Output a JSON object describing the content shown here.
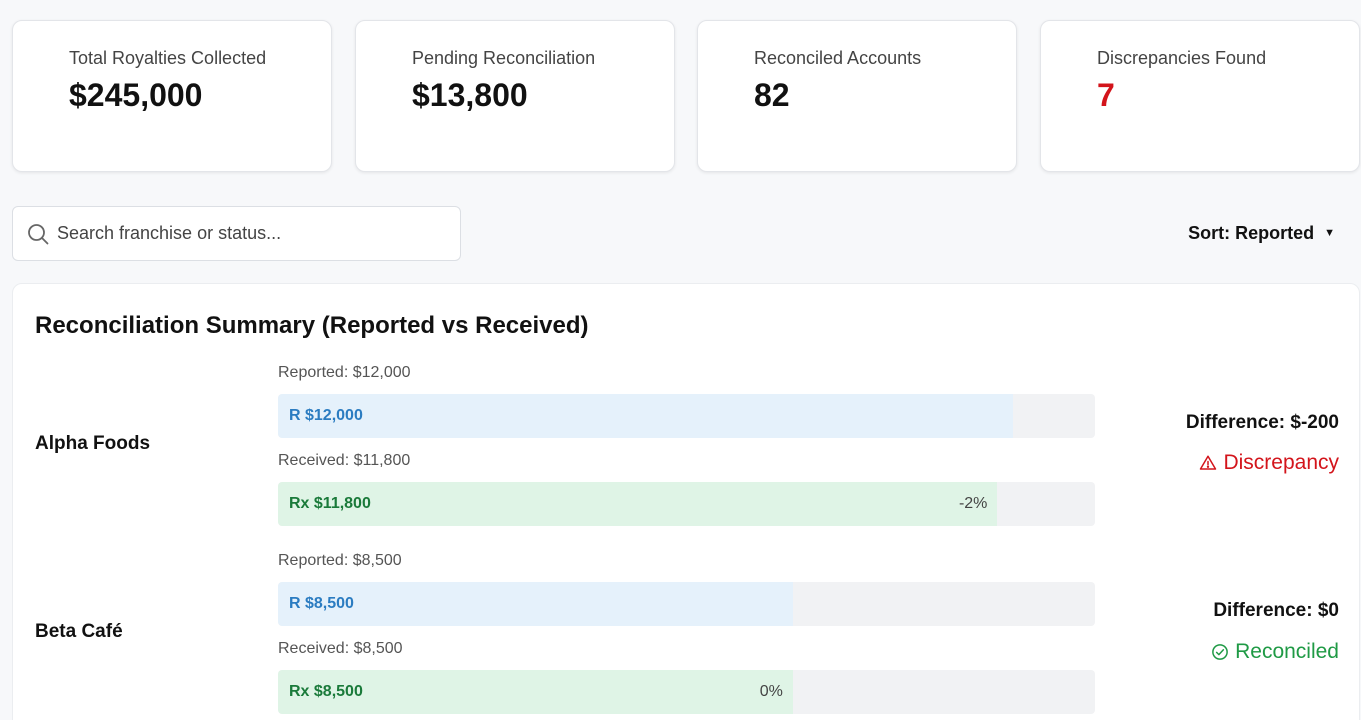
{
  "kpis": [
    {
      "label": "Total Royalties Collected",
      "value": "$245,000"
    },
    {
      "label": "Pending Reconciliation",
      "value": "$13,800"
    },
    {
      "label": "Reconciled Accounts",
      "value": "82"
    },
    {
      "label": "Discrepancies Found",
      "value": "7",
      "color": "#d3141b"
    }
  ],
  "search": {
    "placeholder": "Search franchise or status...",
    "value": ""
  },
  "sort": {
    "label": "Sort: Reported"
  },
  "summary": {
    "title": "Reconciliation Summary (Reported vs Received)",
    "rows": [
      {
        "name": "Alpha Foods",
        "reported_caption": "Reported: $12,000",
        "reported_bar_label": "R $12,000",
        "reported_fraction": 0.9,
        "received_caption": "Received: $11,800",
        "received_bar_label": "Rx $11,800",
        "received_fraction": 0.88,
        "pct_label": "-2%",
        "difference": "Difference: $-200",
        "status": "Discrepancy",
        "status_icon": "warning-icon",
        "status_color": "#d3141b"
      },
      {
        "name": "Beta Café",
        "reported_caption": "Reported: $8,500",
        "reported_bar_label": "R $8,500",
        "reported_fraction": 0.63,
        "received_caption": "Received: $8,500",
        "received_bar_label": "Rx $8,500",
        "received_fraction": 0.63,
        "pct_label": "0%",
        "difference": "Difference: $0",
        "status": "Reconciled",
        "status_icon": "check-circle-icon",
        "status_color": "#1f9a45"
      }
    ]
  }
}
